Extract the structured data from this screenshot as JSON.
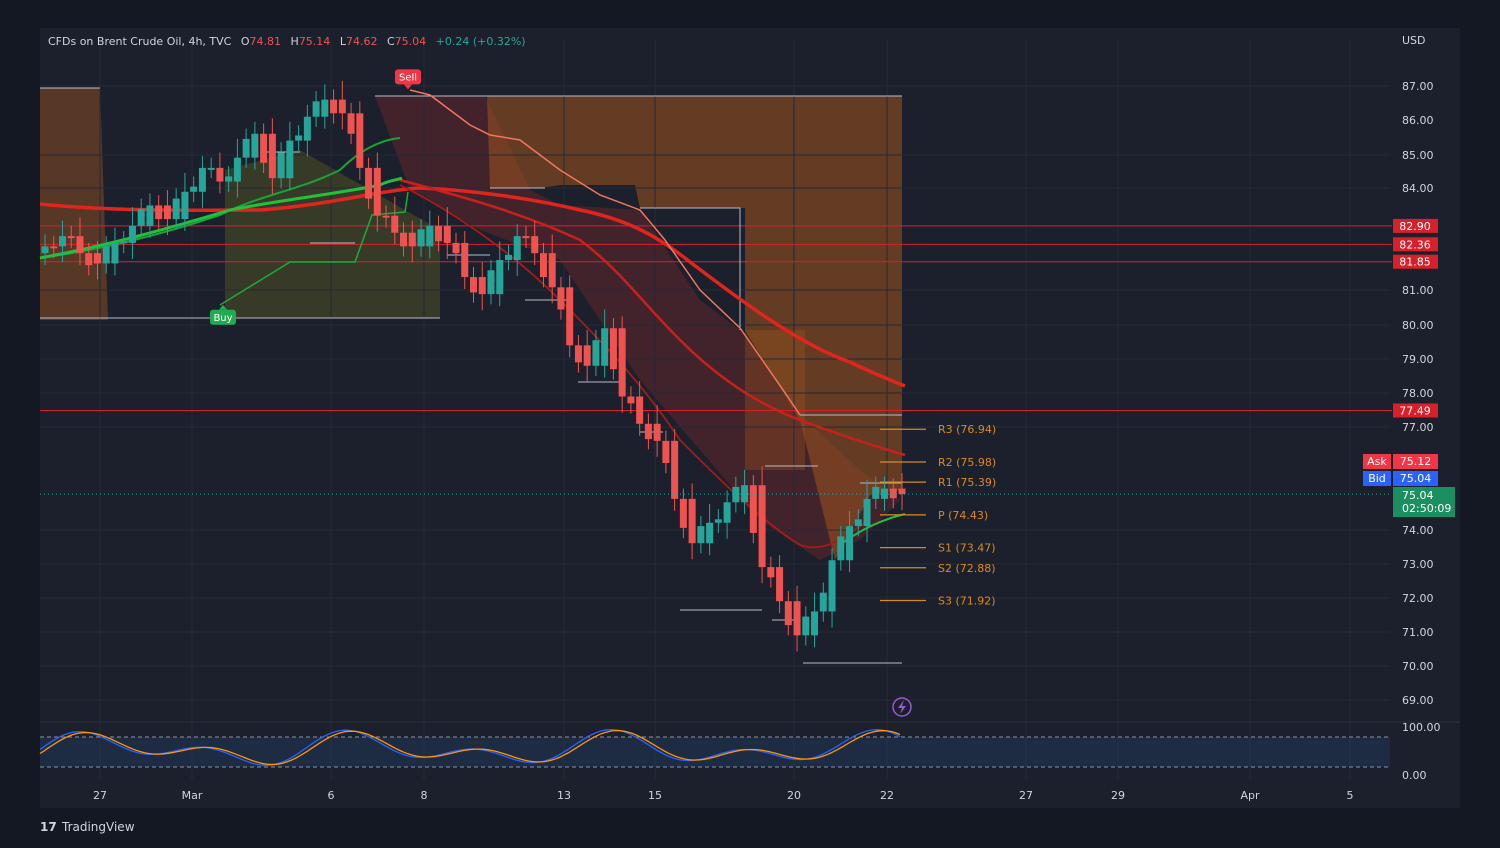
{
  "header": {
    "symbol": "CFDs on Brent Crude Oil, 4h, TVC",
    "open_label": "O",
    "open": "74.81",
    "high_label": "H",
    "high": "75.14",
    "low_label": "L",
    "low": "74.62",
    "close_label": "C",
    "close": "75.04",
    "change": "+0.24 (+0.32%)"
  },
  "currency": "USD",
  "brand": "TradingView",
  "colors": {
    "bg": "#1c202c",
    "up": "#26a69a",
    "down": "#ef5350",
    "sell_zone": "#a0541e",
    "buy_zone": "#5b5a24",
    "ema_red": "#e0251f",
    "pivot": "#d98a1f",
    "level_red": "#d8202b"
  },
  "chart_data": {
    "type": "candlestick",
    "ylim": [
      68.5,
      88
    ],
    "y_ticks": [
      "87.00",
      "86.00",
      "85.00",
      "84.00",
      "81.00",
      "80.00",
      "79.00",
      "78.00",
      "77.00",
      "74.00",
      "73.00",
      "72.00",
      "71.00",
      "70.00",
      "69.00"
    ],
    "x_ticks": [
      "27",
      "Mar",
      "6",
      "8",
      "13",
      "15",
      "20",
      "22",
      "27",
      "29",
      "Apr",
      "5"
    ],
    "horizontal_levels": [
      {
        "value": 82.9,
        "label": "82.90"
      },
      {
        "value": 82.36,
        "label": "82.36"
      },
      {
        "value": 81.85,
        "label": "81.85"
      },
      {
        "value": 77.49,
        "label": "77.49"
      }
    ],
    "pivots": [
      {
        "value": 76.94,
        "label": "R3 (76.94)"
      },
      {
        "value": 75.98,
        "label": "R2 (75.98)"
      },
      {
        "value": 75.39,
        "label": "R1 (75.39)"
      },
      {
        "value": 74.43,
        "label": "P (74.43)"
      },
      {
        "value": 73.47,
        "label": "S1 (73.47)"
      },
      {
        "value": 72.88,
        "label": "S2 (72.88)"
      },
      {
        "value": 71.92,
        "label": "S3 (71.92)"
      }
    ],
    "ask": {
      "label": "Ask",
      "value": "75.12"
    },
    "bid": {
      "label": "Bid",
      "value": "75.04"
    },
    "last_price": {
      "value": "75.04",
      "countdown": "02:50:09"
    },
    "signals": [
      {
        "type": "Sell",
        "label": "Sell",
        "price": 86.9
      },
      {
        "type": "Buy",
        "label": "Buy",
        "price": 80.5
      }
    ],
    "close_path": [
      82.3,
      82.6,
      82.1,
      81.8,
      82.4,
      82.9,
      83.5,
      83.1,
      83.9,
      84.6,
      84.2,
      84.9,
      85.6,
      84.3,
      85.4,
      86.1,
      86.6,
      86.2,
      84.6,
      83.2,
      82.7,
      82.3,
      82.9,
      82.4,
      81.4,
      80.9,
      81.9,
      82.6,
      82.1,
      81.1,
      79.4,
      78.8,
      79.9,
      77.9,
      77.1,
      76.6,
      74.9,
      73.6,
      74.2,
      74.8,
      75.3,
      72.9,
      71.9,
      70.9,
      71.6,
      73.1,
      74.1,
      74.9,
      75.2,
      75.04
    ],
    "oscillator": {
      "ylim": [
        0,
        100
      ],
      "y_ticks": [
        "100.00",
        "0.00"
      ],
      "band": [
        80,
        20
      ]
    }
  }
}
